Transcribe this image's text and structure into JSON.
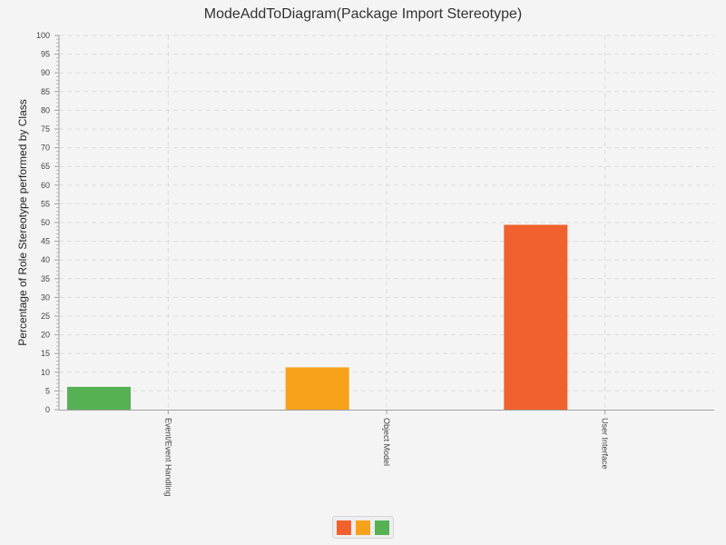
{
  "chart_data": {
    "type": "bar",
    "title": "ModeAddToDiagram(Package Import Stereotype)",
    "xlabel": "",
    "ylabel": "Percentage of Role Stereotype performed by Class",
    "ylim": [
      0,
      100
    ],
    "ytick_step": 5,
    "grid": true,
    "legend_position": "bottom-center",
    "categories": [
      "Event/Event Handling",
      "Object Model",
      "User Interface"
    ],
    "series": [
      {
        "color": "#f0612e",
        "values": [
          0,
          0,
          49.4
        ]
      },
      {
        "color": "#f7a21b",
        "values": [
          0,
          11.3,
          0
        ]
      },
      {
        "color": "#56b155",
        "values": [
          6.1,
          0,
          0
        ]
      }
    ]
  }
}
